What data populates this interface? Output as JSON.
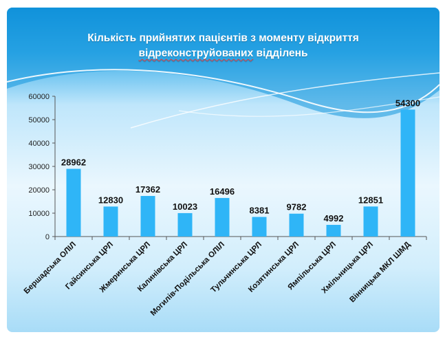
{
  "title_line1": "Кількість прийнятих пацієнтів з моменту відкриття",
  "title_line2_word": "відреконструйованих",
  "title_line2_rest": " відділень",
  "colors": {
    "bar": "#2fb5f7",
    "axis": "#555555",
    "label": "#111111"
  },
  "chart_data": {
    "type": "bar",
    "title": "Кількість прийнятих пацієнтів з моменту відкриття відреконструйованих відділень",
    "categories": [
      "Бершадська ОЛІЛ",
      "Гайсинська ЦРЛ",
      "Жмеринська ЦРЛ",
      "Калинівська ЦРЛ",
      "Могилів-Подільська ОЛІЛ",
      "Тульчинська ЦРЛ",
      "Козятинська ЦРЛ",
      "Ямпільська ЦРЛ",
      "Хмільницька ЦРЛ",
      "Вінницька МКЛ ШМД"
    ],
    "values": [
      28962,
      12830,
      17362,
      10023,
      16496,
      8381,
      9782,
      4992,
      12851,
      54300
    ],
    "ylim": [
      0,
      60000
    ],
    "yticks": [
      "0",
      "10000",
      "20000",
      "30000",
      "40000",
      "50000",
      "60000"
    ],
    "grid": false,
    "legend": "none"
  }
}
